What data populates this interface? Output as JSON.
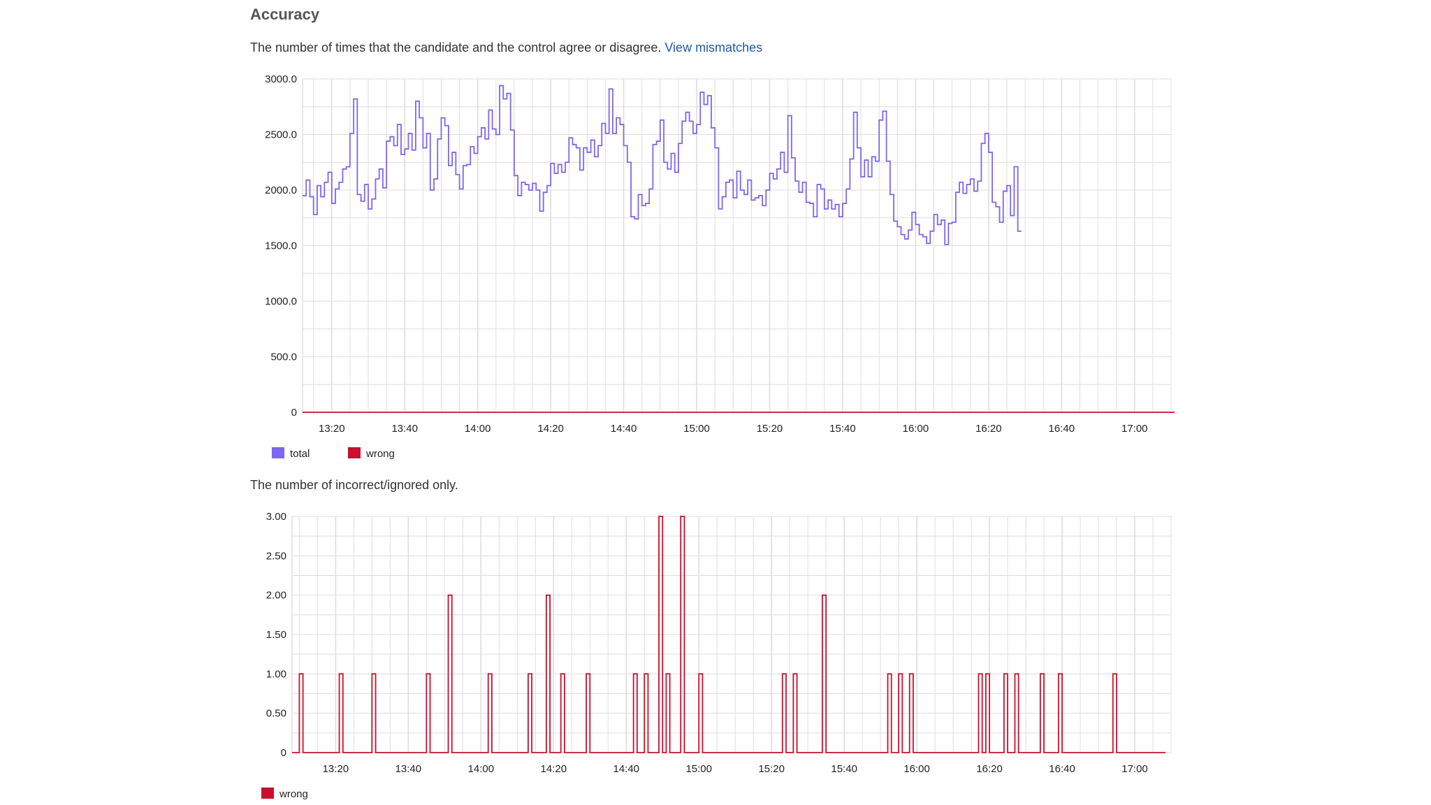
{
  "section": {
    "title": "Accuracy",
    "desc1": "The number of times that the candidate and the control agree or disagree.",
    "link": "View mismatches",
    "desc2": "The number of incorrect/ignored only."
  },
  "colors": {
    "total": "#7b68ee",
    "wrong": "#c8102e",
    "grid": "#dedede"
  },
  "chart_data": [
    {
      "type": "line",
      "title": "",
      "xlabel": "",
      "ylabel": "",
      "x_ticks": [
        "13:20",
        "13:40",
        "14:00",
        "14:20",
        "14:40",
        "15:00",
        "15:20",
        "15:40",
        "16:00",
        "16:20",
        "16:40",
        "17:00"
      ],
      "y_ticks": [
        "0",
        "500.0",
        "1000.0",
        "1500.0",
        "2000.0",
        "2500.0",
        "3000.0"
      ],
      "ylim": [
        0,
        3000
      ],
      "xlim": [
        "13:12",
        "17:10"
      ],
      "grid": true,
      "legend_position": "bottom-left",
      "step": true,
      "series": [
        {
          "name": "total",
          "color": "#7b68ee",
          "points": [
            [
              "13:12",
              1950
            ],
            [
              "13:13",
              2090
            ],
            [
              "13:14",
              1940
            ],
            [
              "13:15",
              1780
            ],
            [
              "13:16",
              2040
            ],
            [
              "13:17",
              1940
            ],
            [
              "13:18",
              2070
            ],
            [
              "13:19",
              2160
            ],
            [
              "13:20",
              1880
            ],
            [
              "13:21",
              2010
            ],
            [
              "13:22",
              2070
            ],
            [
              "13:23",
              2190
            ],
            [
              "13:24",
              2210
            ],
            [
              "13:25",
              2510
            ],
            [
              "13:26",
              2820
            ],
            [
              "13:27",
              1960
            ],
            [
              "13:28",
              1900
            ],
            [
              "13:29",
              2050
            ],
            [
              "13:30",
              1830
            ],
            [
              "13:31",
              1920
            ],
            [
              "13:32",
              2100
            ],
            [
              "13:33",
              2190
            ],
            [
              "13:34",
              2020
            ],
            [
              "13:35",
              2440
            ],
            [
              "13:36",
              2480
            ],
            [
              "13:37",
              2400
            ],
            [
              "13:38",
              2590
            ],
            [
              "13:39",
              2320
            ],
            [
              "13:40",
              2370
            ],
            [
              "13:41",
              2510
            ],
            [
              "13:42",
              2360
            ],
            [
              "13:43",
              2800
            ],
            [
              "13:44",
              2650
            ],
            [
              "13:45",
              2380
            ],
            [
              "13:46",
              2510
            ],
            [
              "13:47",
              2000
            ],
            [
              "13:48",
              2100
            ],
            [
              "13:49",
              2460
            ],
            [
              "13:50",
              2650
            ],
            [
              "13:51",
              2580
            ],
            [
              "13:52",
              2220
            ],
            [
              "13:53",
              2340
            ],
            [
              "13:54",
              2140
            ],
            [
              "13:55",
              2010
            ],
            [
              "13:56",
              2220
            ],
            [
              "13:57",
              2230
            ],
            [
              "13:58",
              2390
            ],
            [
              "13:59",
              2330
            ],
            [
              "14:00",
              2480
            ],
            [
              "14:01",
              2560
            ],
            [
              "14:02",
              2460
            ],
            [
              "14:03",
              2720
            ],
            [
              "14:04",
              2550
            ],
            [
              "14:05",
              2500
            ],
            [
              "14:06",
              2940
            ],
            [
              "14:07",
              2820
            ],
            [
              "14:08",
              2870
            ],
            [
              "14:09",
              2540
            ],
            [
              "14:10",
              2130
            ],
            [
              "14:11",
              1950
            ],
            [
              "14:12",
              2070
            ],
            [
              "14:13",
              2050
            ],
            [
              "14:14",
              2000
            ],
            [
              "14:15",
              2060
            ],
            [
              "14:16",
              2000
            ],
            [
              "14:17",
              1810
            ],
            [
              "14:18",
              1980
            ],
            [
              "14:19",
              2040
            ],
            [
              "14:20",
              2240
            ],
            [
              "14:21",
              2150
            ],
            [
              "14:22",
              2230
            ],
            [
              "14:23",
              2160
            ],
            [
              "14:24",
              2250
            ],
            [
              "14:25",
              2470
            ],
            [
              "14:26",
              2410
            ],
            [
              "14:27",
              2380
            ],
            [
              "14:28",
              2180
            ],
            [
              "14:29",
              2380
            ],
            [
              "14:30",
              2340
            ],
            [
              "14:31",
              2450
            ],
            [
              "14:32",
              2300
            ],
            [
              "14:33",
              2400
            ],
            [
              "14:34",
              2600
            ],
            [
              "14:35",
              2510
            ],
            [
              "14:36",
              2910
            ],
            [
              "14:37",
              2510
            ],
            [
              "14:38",
              2650
            ],
            [
              "14:39",
              2590
            ],
            [
              "14:40",
              2400
            ],
            [
              "14:41",
              2250
            ],
            [
              "14:42",
              1760
            ],
            [
              "14:43",
              1740
            ],
            [
              "14:44",
              1960
            ],
            [
              "14:45",
              1860
            ],
            [
              "14:46",
              1880
            ],
            [
              "14:47",
              2010
            ],
            [
              "14:48",
              2410
            ],
            [
              "14:49",
              2440
            ],
            [
              "14:50",
              2630
            ],
            [
              "14:51",
              2250
            ],
            [
              "14:52",
              2190
            ],
            [
              "14:53",
              2330
            ],
            [
              "14:54",
              2160
            ],
            [
              "14:55",
              2420
            ],
            [
              "14:56",
              2620
            ],
            [
              "14:57",
              2700
            ],
            [
              "14:58",
              2620
            ],
            [
              "14:59",
              2510
            ],
            [
              "15:00",
              2590
            ],
            [
              "15:01",
              2880
            ],
            [
              "15:02",
              2770
            ],
            [
              "15:03",
              2850
            ],
            [
              "15:04",
              2560
            ],
            [
              "15:05",
              2380
            ],
            [
              "15:06",
              1830
            ],
            [
              "15:07",
              1940
            ],
            [
              "15:08",
              2070
            ],
            [
              "15:09",
              2090
            ],
            [
              "15:10",
              1930
            ],
            [
              "15:11",
              2170
            ],
            [
              "15:12",
              2000
            ],
            [
              "15:13",
              1960
            ],
            [
              "15:14",
              2090
            ],
            [
              "15:15",
              1910
            ],
            [
              "15:16",
              1930
            ],
            [
              "15:17",
              1950
            ],
            [
              "15:18",
              1860
            ],
            [
              "15:19",
              2000
            ],
            [
              "15:20",
              2150
            ],
            [
              "15:21",
              2100
            ],
            [
              "15:22",
              2190
            ],
            [
              "15:23",
              2340
            ],
            [
              "15:24",
              2160
            ],
            [
              "15:25",
              2670
            ],
            [
              "15:26",
              2290
            ],
            [
              "15:27",
              2080
            ],
            [
              "15:28",
              1980
            ],
            [
              "15:29",
              2070
            ],
            [
              "15:30",
              1890
            ],
            [
              "15:31",
              1880
            ],
            [
              "15:32",
              1760
            ],
            [
              "15:33",
              2050
            ],
            [
              "15:34",
              2010
            ],
            [
              "15:35",
              1830
            ],
            [
              "15:36",
              1910
            ],
            [
              "15:37",
              1830
            ],
            [
              "15:38",
              1870
            ],
            [
              "15:39",
              1760
            ],
            [
              "15:40",
              1880
            ],
            [
              "15:41",
              2010
            ],
            [
              "15:42",
              2280
            ],
            [
              "15:43",
              2700
            ],
            [
              "15:44",
              2380
            ],
            [
              "15:45",
              2120
            ],
            [
              "15:46",
              2270
            ],
            [
              "15:47",
              2120
            ],
            [
              "15:48",
              2300
            ],
            [
              "15:49",
              2260
            ],
            [
              "15:50",
              2630
            ],
            [
              "15:51",
              2710
            ],
            [
              "15:52",
              2260
            ],
            [
              "15:53",
              1960
            ],
            [
              "15:54",
              1720
            ],
            [
              "15:55",
              1670
            ],
            [
              "15:56",
              1600
            ],
            [
              "15:57",
              1560
            ],
            [
              "15:58",
              1640
            ],
            [
              "15:59",
              1800
            ],
            [
              "16:00",
              1690
            ],
            [
              "16:01",
              1600
            ],
            [
              "16:02",
              1580
            ],
            [
              "16:03",
              1520
            ],
            [
              "16:04",
              1630
            ],
            [
              "16:05",
              1780
            ],
            [
              "16:06",
              1690
            ],
            [
              "16:07",
              1730
            ],
            [
              "16:08",
              1510
            ],
            [
              "16:09",
              1700
            ],
            [
              "16:10",
              1710
            ],
            [
              "16:11",
              1980
            ],
            [
              "16:12",
              2070
            ],
            [
              "16:13",
              1970
            ],
            [
              "16:14",
              2050
            ],
            [
              "16:15",
              2100
            ],
            [
              "16:16",
              1990
            ],
            [
              "16:17",
              2080
            ],
            [
              "16:18",
              2420
            ],
            [
              "16:19",
              2510
            ],
            [
              "16:20",
              2340
            ],
            [
              "16:21",
              1890
            ],
            [
              "16:22",
              1850
            ],
            [
              "16:23",
              1710
            ],
            [
              "16:24",
              1990
            ],
            [
              "16:25",
              2040
            ],
            [
              "16:26",
              1770
            ],
            [
              "16:27",
              2210
            ],
            [
              "16:28",
              1630
            ]
          ]
        },
        {
          "name": "wrong",
          "color": "#c8102e",
          "points": [
            [
              "13:12",
              0
            ],
            [
              "17:10",
              0
            ]
          ]
        }
      ]
    },
    {
      "type": "line",
      "title": "",
      "xlabel": "",
      "ylabel": "",
      "x_ticks": [
        "13:20",
        "13:40",
        "14:00",
        "14:20",
        "14:40",
        "15:00",
        "15:20",
        "15:40",
        "16:00",
        "16:20",
        "16:40",
        "17:00"
      ],
      "y_ticks": [
        "0",
        "0.50",
        "1.00",
        "1.50",
        "2.00",
        "2.50",
        "3.00"
      ],
      "ylim": [
        0,
        3
      ],
      "xlim": [
        "13:08",
        "17:10"
      ],
      "grid": true,
      "legend_position": "bottom-left",
      "step": true,
      "series": [
        {
          "name": "wrong",
          "color": "#c8102e",
          "spikes": [
            [
              "13:10",
              1
            ],
            [
              "13:21",
              1
            ],
            [
              "13:30",
              1
            ],
            [
              "13:45",
              1
            ],
            [
              "13:51",
              2
            ],
            [
              "14:02",
              1
            ],
            [
              "14:13",
              1
            ],
            [
              "14:18",
              2
            ],
            [
              "14:22",
              1
            ],
            [
              "14:29",
              1
            ],
            [
              "14:42",
              1
            ],
            [
              "14:45",
              1
            ],
            [
              "14:49",
              3
            ],
            [
              "14:51",
              1
            ],
            [
              "14:55",
              3
            ],
            [
              "15:00",
              1
            ],
            [
              "15:23",
              1
            ],
            [
              "15:26",
              1
            ],
            [
              "15:34",
              2
            ],
            [
              "15:52",
              1
            ],
            [
              "15:55",
              1
            ],
            [
              "15:58",
              1
            ],
            [
              "16:17",
              1
            ],
            [
              "16:19",
              1
            ],
            [
              "16:24",
              1
            ],
            [
              "16:27",
              1
            ],
            [
              "16:34",
              1
            ],
            [
              "16:39",
              1
            ],
            [
              "16:54",
              1
            ]
          ]
        }
      ]
    }
  ]
}
